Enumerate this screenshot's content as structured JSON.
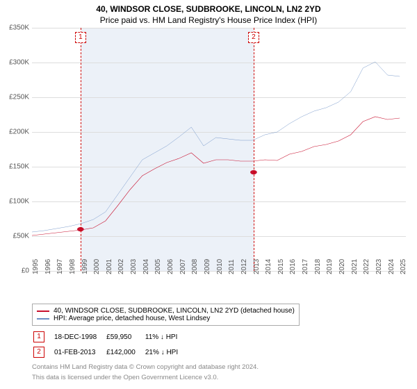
{
  "title": "40, WINDSOR CLOSE, SUDBROOKE, LINCOLN, LN2 2YD",
  "subtitle": "Price paid vs. HM Land Registry's House Price Index (HPI)",
  "chart": {
    "type": "line",
    "x_years": [
      1995,
      1996,
      1997,
      1998,
      1999,
      2000,
      2001,
      2002,
      2003,
      2004,
      2005,
      2006,
      2007,
      2008,
      2009,
      2010,
      2011,
      2012,
      2013,
      2014,
      2015,
      2016,
      2017,
      2018,
      2019,
      2020,
      2021,
      2022,
      2023,
      2024,
      2025
    ],
    "xlim": [
      1995,
      2025.5
    ],
    "ylim": [
      0,
      350
    ],
    "ytick_raw": [
      0,
      50,
      100,
      150,
      200,
      250,
      300,
      350
    ],
    "ytick_labels": [
      "£0",
      "£50K",
      "£100K",
      "£150K",
      "£200K",
      "£250K",
      "£300K",
      "£350K"
    ],
    "bg_color": "#ffffff",
    "grid_color": "#dddddd",
    "shade_color": "rgba(200,215,235,.35)",
    "shade_range": [
      1999,
      2013.1
    ],
    "series": [
      {
        "name": "property",
        "color": "#c8102e",
        "width": 2,
        "y": [
          51,
          53,
          55,
          57,
          59,
          62,
          72,
          94,
          117,
          137,
          147,
          156,
          162,
          170,
          155,
          160,
          160,
          158,
          158,
          160,
          159,
          168,
          172,
          179,
          182,
          187,
          196,
          215,
          222,
          218,
          220
        ]
      },
      {
        "name": "hpi",
        "color": "#6a8fc5",
        "width": 1.5,
        "y": [
          56,
          58,
          61,
          64,
          68,
          74,
          85,
          110,
          135,
          160,
          170,
          180,
          193,
          207,
          180,
          192,
          190,
          188,
          188,
          196,
          200,
          212,
          222,
          230,
          235,
          243,
          258,
          292,
          301,
          282,
          280
        ]
      }
    ],
    "sales": [
      {
        "n": "1",
        "year": 1998.96,
        "price_k": 59.95
      },
      {
        "n": "2",
        "year": 2013.08,
        "price_k": 142
      }
    ]
  },
  "legend": [
    {
      "color": "#c8102e",
      "label": "40, WINDSOR CLOSE, SUDBROOKE, LINCOLN, LN2 2YD (detached house)"
    },
    {
      "color": "#6a8fc5",
      "label": "HPI: Average price, detached house, West Lindsey"
    }
  ],
  "marker_rows": [
    {
      "n": "1",
      "date": "18-DEC-1998",
      "price": "£59,950",
      "delta": "11% ↓ HPI"
    },
    {
      "n": "2",
      "date": "01-FEB-2013",
      "price": "£142,000",
      "delta": "21% ↓ HPI"
    }
  ],
  "footer1": "Contains HM Land Registry data © Crown copyright and database right 2024.",
  "footer2": "This data is licensed under the Open Government Licence v3.0."
}
